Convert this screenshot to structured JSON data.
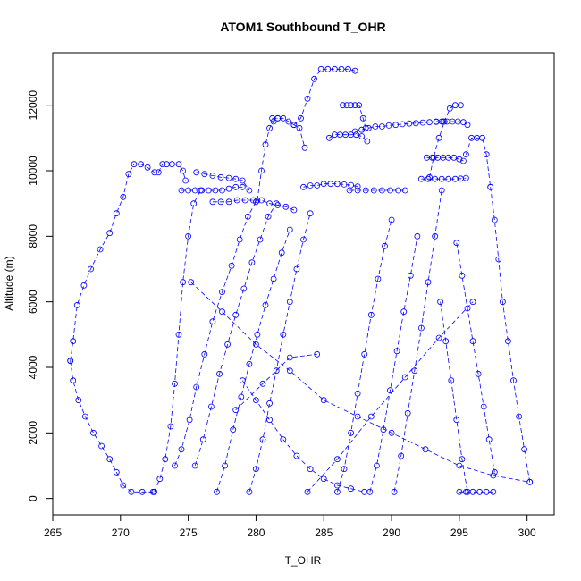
{
  "chart_data": {
    "type": "line",
    "title": "ATOM1 Southbound T_OHR",
    "xlabel": "T_OHR",
    "ylabel": "Altitude (m)",
    "xlim": [
      265,
      302
    ],
    "ylim": [
      -500,
      13600
    ],
    "x_ticks": [
      265,
      270,
      275,
      280,
      285,
      290,
      295,
      300
    ],
    "y_ticks": [
      0,
      2000,
      4000,
      6000,
      8000,
      10000,
      12000
    ],
    "grid": false,
    "marker": "open-circle",
    "line_style": "dashed",
    "color": "#0000ff",
    "series": [
      {
        "x": [
          266.3,
          266.5,
          266.8,
          267.3,
          267.8,
          268.5,
          269.2,
          269.7,
          270.2,
          270.6,
          271.0,
          271.5,
          272.0,
          272.5
        ],
        "y": [
          4200,
          4800,
          5900,
          6500,
          7000,
          7600,
          8100,
          8700,
          9200,
          9900,
          10200,
          10200,
          10100,
          9950
        ]
      },
      {
        "x": [
          266.3,
          266.5,
          266.9,
          267.4,
          268.0,
          268.6,
          269.2,
          269.7,
          270.2,
          270.8,
          271.6,
          272.4
        ],
        "y": [
          4200,
          3600,
          3000,
          2500,
          2000,
          1600,
          1200,
          800,
          400,
          200,
          200,
          200
        ]
      },
      {
        "x": [
          272.5,
          272.9,
          273.3,
          273.7,
          274.0,
          274.3,
          274.6,
          275.0,
          275.4,
          275.9
        ],
        "y": [
          200,
          600,
          1200,
          2200,
          3500,
          5000,
          6600,
          8000,
          9000,
          9400
        ]
      },
      {
        "x": [
          272.8,
          273.1,
          273.4,
          273.8,
          274.3,
          274.6,
          274.8
        ],
        "y": [
          9950,
          10200,
          10200,
          10200,
          10200,
          10000,
          9700
        ]
      },
      {
        "x": [
          274.5,
          275.0,
          275.5,
          276.0,
          276.5,
          277.0,
          277.5,
          278.0,
          278.5,
          279.0
        ],
        "y": [
          9400,
          9400,
          9400,
          9400,
          9400,
          9400,
          9400,
          9450,
          9500,
          9500
        ]
      },
      {
        "x": [
          275.6,
          276.2,
          276.8,
          277.4,
          278.0,
          278.5,
          279.0,
          279.5
        ],
        "y": [
          9950,
          9900,
          9850,
          9800,
          9780,
          9750,
          9700,
          9400
        ]
      },
      {
        "x": [
          274.0,
          274.5,
          275.1,
          275.6,
          276.2,
          276.8,
          277.5,
          278.2,
          278.8,
          279.4,
          280.0
        ],
        "y": [
          1000,
          1500,
          2400,
          3400,
          4400,
          5400,
          6300,
          7100,
          7900,
          8600,
          9050
        ]
      },
      {
        "x": [
          276.8,
          277.4,
          278.0,
          278.6,
          279.2,
          279.8,
          280.4,
          281.0,
          281.6,
          282.2,
          282.8
        ],
        "y": [
          9050,
          9050,
          9050,
          9100,
          9100,
          9100,
          9100,
          9000,
          8950,
          8900,
          8800
        ]
      },
      {
        "x": [
          275.5,
          276.1,
          276.7,
          277.3,
          277.9,
          278.5,
          279.1,
          279.7,
          280.3,
          280.9,
          281.5
        ],
        "y": [
          1000,
          1800,
          2800,
          3800,
          4700,
          5600,
          6400,
          7200,
          7900,
          8600,
          9000
        ]
      },
      {
        "x": [
          277.1,
          277.7,
          278.3,
          278.9,
          279.5,
          280.1,
          280.7,
          281.3,
          281.9,
          282.5
        ],
        "y": [
          200,
          1000,
          2100,
          3100,
          4100,
          5000,
          5900,
          6700,
          7500,
          8200
        ]
      },
      {
        "x": [
          279.5,
          280.0,
          280.5,
          281.0,
          281.5,
          282.0,
          282.5,
          283.0,
          283.5,
          284.0
        ],
        "y": [
          200,
          900,
          1800,
          2900,
          3900,
          5000,
          6000,
          7000,
          7900,
          8700
        ]
      },
      {
        "x": [
          280.1,
          280.4,
          280.7,
          281.0,
          281.3,
          281.6
        ],
        "y": [
          9100,
          10000,
          10800,
          11300,
          11500,
          11600
        ]
      },
      {
        "x": [
          281.2,
          281.6,
          282.0,
          282.4,
          282.8,
          283.2,
          283.6
        ],
        "y": [
          11600,
          11600,
          11600,
          11500,
          11400,
          11300,
          10700
        ]
      },
      {
        "x": [
          282.8,
          283.3,
          283.8,
          284.3,
          284.8,
          285.3,
          285.8,
          286.3,
          286.8,
          287.3
        ],
        "y": [
          11400,
          11600,
          12200,
          12800,
          13100,
          13100,
          13100,
          13100,
          13100,
          13050
        ]
      },
      {
        "x": [
          286.4,
          286.7,
          287.0,
          287.3,
          287.6,
          287.9,
          288.1
        ],
        "y": [
          12000,
          12000,
          12000,
          12000,
          12000,
          11600,
          11300
        ]
      },
      {
        "x": [
          287.3,
          287.8,
          288.3,
          288.8,
          289.3,
          289.8,
          290.3,
          290.8,
          291.3,
          291.8,
          292.3,
          292.8,
          293.3,
          293.8
        ],
        "y": [
          11200,
          11250,
          11300,
          11350,
          11350,
          11380,
          11400,
          11420,
          11440,
          11450,
          11470,
          11480,
          11490,
          11500
        ]
      },
      {
        "x": [
          285.4,
          285.8,
          286.2,
          286.6,
          287.0,
          287.4,
          287.8,
          288.2
        ],
        "y": [
          11000,
          11100,
          11100,
          11100,
          11100,
          11100,
          11050,
          10900
        ]
      },
      {
        "x": [
          283.5,
          284.0,
          284.5,
          285.0,
          285.5,
          286.0,
          286.5,
          287.0,
          287.5
        ],
        "y": [
          9500,
          9550,
          9550,
          9600,
          9600,
          9600,
          9580,
          9560,
          9520
        ]
      },
      {
        "x": [
          286.9,
          287.5,
          288.1,
          288.7,
          289.3,
          289.9,
          290.5,
          291.0
        ],
        "y": [
          9400,
          9400,
          9400,
          9400,
          9400,
          9400,
          9400,
          9400
        ]
      },
      {
        "x": [
          286.0,
          286.5,
          287.0,
          287.5,
          288.0,
          288.5,
          289.0,
          289.5,
          290.0
        ],
        "y": [
          200,
          900,
          2000,
          3200,
          4400,
          5600,
          6700,
          7700,
          8500
        ]
      },
      {
        "x": [
          288.4,
          288.9,
          289.4,
          289.9,
          290.4,
          290.9,
          291.4,
          291.9
        ],
        "y": [
          200,
          1000,
          2100,
          3300,
          4500,
          5700,
          6800,
          8000
        ]
      },
      {
        "x": [
          290.2,
          290.7,
          291.2,
          291.7,
          292.2,
          292.7,
          293.2,
          293.7
        ],
        "y": [
          200,
          1300,
          2600,
          3900,
          5200,
          6600,
          8000,
          9400
        ]
      },
      {
        "x": [
          292.8,
          293.1,
          293.5,
          293.9,
          294.3,
          294.7,
          295.1
        ],
        "y": [
          9800,
          10400,
          11000,
          11500,
          11900,
          12000,
          12000
        ]
      },
      {
        "x": [
          293.3,
          293.7,
          294.1,
          294.5,
          294.9,
          295.3,
          295.6
        ],
        "y": [
          11500,
          11500,
          11500,
          11500,
          11500,
          11480,
          11400
        ]
      },
      {
        "x": [
          292.6,
          293.0,
          293.4,
          293.8,
          294.2,
          294.6,
          295.0,
          295.3
        ],
        "y": [
          10400,
          10400,
          10400,
          10400,
          10400,
          10400,
          10350,
          10300
        ]
      },
      {
        "x": [
          292.2,
          292.7,
          293.2,
          293.7,
          294.2,
          294.7,
          295.1,
          295.5
        ],
        "y": [
          9750,
          9750,
          9750,
          9750,
          9750,
          9750,
          9760,
          9780
        ]
      },
      {
        "x": [
          295.5,
          295.9,
          296.3,
          296.7,
          297.0,
          297.3
        ],
        "y": [
          10500,
          11000,
          11000,
          11000,
          10500,
          9500
        ]
      },
      {
        "x": [
          297.3,
          297.6,
          297.9,
          298.2,
          298.6,
          299.0,
          299.4,
          299.8,
          300.2
        ],
        "y": [
          9500,
          8500,
          7300,
          6000,
          4800,
          3600,
          2500,
          1500,
          500
        ]
      },
      {
        "x": [
          295.0,
          295.5,
          296.0,
          296.5,
          297.0,
          297.5
        ],
        "y": [
          200,
          200,
          200,
          200,
          200,
          200
        ]
      },
      {
        "x": [
          294.8,
          295.2,
          295.6,
          296.0,
          296.4,
          296.8,
          297.2,
          297.6
        ],
        "y": [
          7800,
          6800,
          5800,
          4800,
          3800,
          2800,
          1800,
          800
        ]
      },
      {
        "x": [
          293.6,
          294.0,
          294.4,
          294.8,
          295.2,
          295.6
        ],
        "y": [
          6000,
          4800,
          3600,
          2400,
          1200,
          200
        ]
      },
      {
        "x": [
          275.2,
          277.5,
          280.0,
          282.5,
          285.0,
          287.5,
          290.0,
          292.5,
          295.0,
          297.5,
          300.2
        ],
        "y": [
          6600,
          5700,
          4700,
          3900,
          3000,
          2500,
          2000,
          1500,
          1000,
          700,
          500
        ]
      },
      {
        "x": [
          283.8,
          286.0,
          288.5,
          291.0,
          293.5,
          296.0
        ],
        "y": [
          200,
          1200,
          2500,
          3700,
          4900,
          6000
        ]
      },
      {
        "x": [
          278.5,
          280.5,
          282.5,
          284.5
        ],
        "y": [
          2700,
          3500,
          4300,
          4400
        ]
      },
      {
        "x": [
          279.0,
          280.0,
          281.0,
          282.0,
          283.0,
          284.0,
          285.0,
          286.0,
          287.0,
          288.0
        ],
        "y": [
          3600,
          3000,
          2400,
          1800,
          1300,
          900,
          600,
          400,
          300,
          200
        ]
      }
    ]
  }
}
